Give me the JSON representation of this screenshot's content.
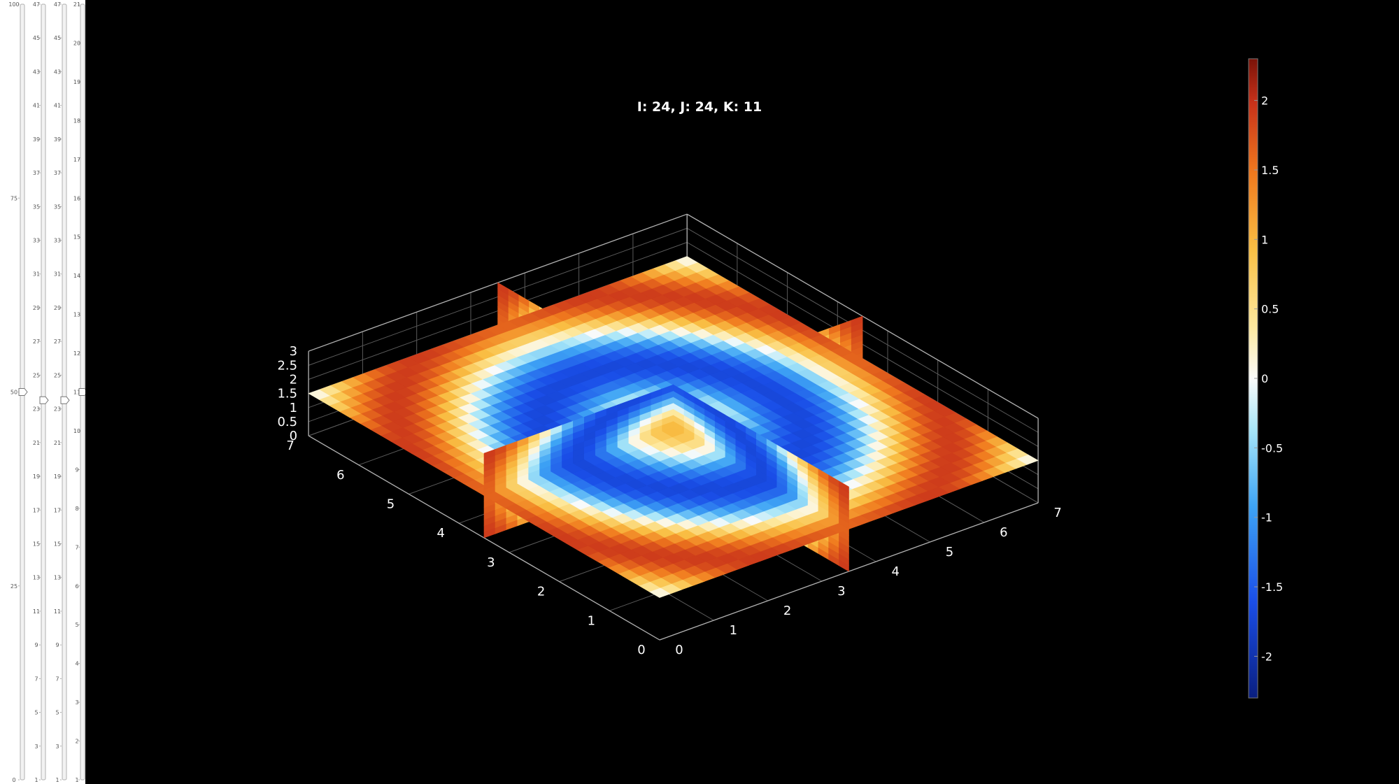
{
  "title": "I: 24, J:  24, K: 11",
  "sliders": [
    {
      "name": "slider-main",
      "value": 50,
      "min": 0,
      "max": 100,
      "tick_labels": [
        "100",
        "75",
        "50",
        "25",
        "0"
      ]
    },
    {
      "name": "slider-i",
      "value": 24,
      "min": 1,
      "max": 48,
      "tick_labels": [
        "47",
        "45",
        "43",
        "41",
        "39",
        "37",
        "35",
        "33",
        "31",
        "29",
        "27",
        "25",
        "23",
        "21",
        "19",
        "17",
        "15",
        "13",
        "11",
        "9",
        "7",
        "5",
        "3",
        "1"
      ]
    },
    {
      "name": "slider-j",
      "value": 24,
      "min": 1,
      "max": 48,
      "tick_labels": [
        "47",
        "45",
        "43",
        "41",
        "39",
        "37",
        "35",
        "33",
        "31",
        "29",
        "27",
        "25",
        "23",
        "21",
        "19",
        "17",
        "15",
        "13",
        "11",
        "9",
        "7",
        "5",
        "3",
        "1"
      ]
    },
    {
      "name": "slider-k",
      "value": 11,
      "min": 1,
      "max": 21,
      "tick_labels": [
        "21",
        "20",
        "19",
        "18",
        "17",
        "16",
        "15",
        "14",
        "13",
        "12",
        "11",
        "10",
        "9",
        "8",
        "7",
        "6",
        "5",
        "4",
        "3",
        "2",
        "1"
      ]
    }
  ],
  "axes": {
    "x_ticks": [
      "0",
      "1",
      "2",
      "3",
      "4",
      "5",
      "6",
      "7"
    ],
    "y_ticks": [
      "0",
      "1",
      "2",
      "3",
      "4",
      "5",
      "6",
      "7"
    ],
    "z_ticks": [
      "0",
      "0.5",
      "1",
      "1.5",
      "2",
      "2.5",
      "3"
    ],
    "xlim": [
      0,
      7
    ],
    "ylim": [
      0,
      7
    ],
    "zlim": [
      0,
      3
    ]
  },
  "colorbar": {
    "ticks": [
      "2",
      "1.5",
      "1",
      "0.5",
      "0",
      "-0.5",
      "-1",
      "-1.5",
      "-2"
    ],
    "range": [
      -2.3,
      2.3
    ]
  },
  "colors": {
    "background": "#000000",
    "grid": "#5a5a5a",
    "text": "#ffffff"
  }
}
